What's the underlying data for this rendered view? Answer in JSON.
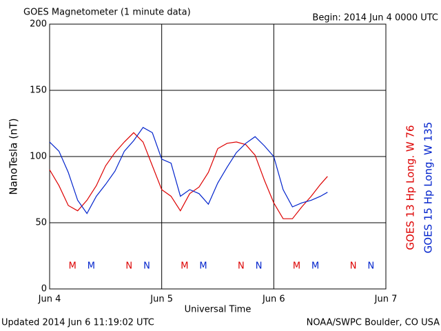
{
  "chart_data": {
    "type": "line",
    "title": "GOES Magnetometer (1 minute data)",
    "subtitle": "Begin:  2014 Jun 4 0000 UTC",
    "xlabel": "Universal Time",
    "ylabel": "NanoTesla (nT)",
    "footer_left": "Updated 2014 Jun  6 11:19:02 UTC",
    "footer_right": "NOAA/SWPC Boulder, CO USA",
    "x": [
      0,
      2,
      4,
      6,
      8,
      10,
      12,
      14,
      16,
      18,
      20,
      22,
      24,
      26,
      28,
      30,
      32,
      34,
      36,
      38,
      40,
      42,
      44,
      46,
      48,
      50,
      52,
      54,
      56,
      58,
      59.5
    ],
    "series": [
      {
        "name": "GOES 13 Hp  Long. W 76",
        "color": "#dd0000",
        "values": [
          90,
          78,
          63,
          59,
          67,
          78,
          93,
          103,
          111,
          118,
          111,
          93,
          75,
          70,
          59,
          72,
          77,
          88,
          106,
          110,
          111,
          109,
          101,
          82,
          65,
          53,
          53,
          62,
          70,
          79,
          85
        ]
      },
      {
        "name": "GOES 15 Hp  Long. W 135",
        "color": "#0022cc",
        "values": [
          111,
          104,
          88,
          67,
          57,
          70,
          79,
          89,
          104,
          112,
          122,
          118,
          98,
          95,
          70,
          75,
          72,
          64,
          80,
          92,
          103,
          110,
          115,
          108,
          100,
          75,
          62,
          65,
          67,
          70,
          73
        ]
      }
    ],
    "annotations": [
      {
        "text": "M",
        "x": 4.9,
        "series": 0
      },
      {
        "text": "M",
        "x": 8.9,
        "series": 1
      },
      {
        "text": "N",
        "x": 17,
        "series": 0
      },
      {
        "text": "N",
        "x": 20.8,
        "series": 1
      },
      {
        "text": "M",
        "x": 28.9,
        "series": 0
      },
      {
        "text": "M",
        "x": 32.9,
        "series": 1
      },
      {
        "text": "N",
        "x": 41,
        "series": 0
      },
      {
        "text": "N",
        "x": 44.8,
        "series": 1
      },
      {
        "text": "M",
        "x": 52.9,
        "series": 0
      },
      {
        "text": "M",
        "x": 56.9,
        "series": 1
      },
      {
        "text": "N",
        "x": 65,
        "series": 0
      },
      {
        "text": "N",
        "x": 68.8,
        "series": 1
      }
    ],
    "xlim": [
      0,
      72
    ],
    "xticks": [
      {
        "value": 0,
        "label": "Jun 4"
      },
      {
        "value": 24,
        "label": "Jun 5"
      },
      {
        "value": 48,
        "label": "Jun 6"
      },
      {
        "value": 72,
        "label": "Jun 7"
      }
    ],
    "ylim": [
      0,
      200
    ],
    "yticks": [
      0,
      50,
      100,
      150,
      200
    ],
    "grid": true
  }
}
